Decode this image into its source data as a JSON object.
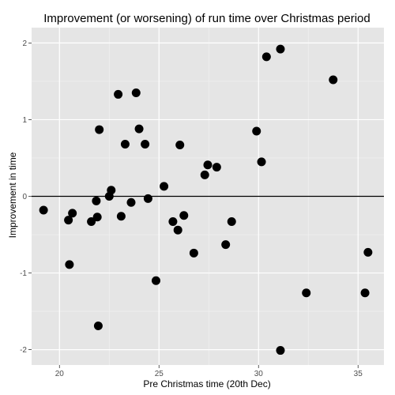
{
  "chart_data": {
    "type": "scatter",
    "title": "Improvement (or worsening) of run time over Christmas period",
    "xlabel": "Pre Christmas time (20th Dec)",
    "ylabel": "Improvement in time",
    "xlim": [
      18.6,
      36.3
    ],
    "ylim": [
      -2.2,
      2.2
    ],
    "x_ticks": [
      20,
      25,
      30,
      35
    ],
    "y_ticks": [
      -2,
      -1,
      0,
      1,
      2
    ],
    "grid": true,
    "reference_line_y": 0,
    "points": [
      {
        "x": 19.2,
        "y": -0.18
      },
      {
        "x": 20.45,
        "y": -0.31
      },
      {
        "x": 20.5,
        "y": -0.89
      },
      {
        "x": 20.65,
        "y": -0.22
      },
      {
        "x": 21.6,
        "y": -0.33
      },
      {
        "x": 21.85,
        "y": -0.06
      },
      {
        "x": 21.9,
        "y": -0.27
      },
      {
        "x": 22.0,
        "y": 0.87
      },
      {
        "x": 21.95,
        "y": -1.69
      },
      {
        "x": 22.5,
        "y": 0.0
      },
      {
        "x": 22.6,
        "y": 0.08
      },
      {
        "x": 22.95,
        "y": 1.33
      },
      {
        "x": 23.1,
        "y": -0.26
      },
      {
        "x": 23.3,
        "y": 0.68
      },
      {
        "x": 23.6,
        "y": -0.08
      },
      {
        "x": 23.85,
        "y": 1.35
      },
      {
        "x": 24.0,
        "y": 0.88
      },
      {
        "x": 24.3,
        "y": 0.68
      },
      {
        "x": 24.45,
        "y": -0.03
      },
      {
        "x": 24.85,
        "y": -1.1
      },
      {
        "x": 25.25,
        "y": 0.13
      },
      {
        "x": 25.7,
        "y": -0.33
      },
      {
        "x": 25.95,
        "y": -0.44
      },
      {
        "x": 26.05,
        "y": 0.67
      },
      {
        "x": 26.25,
        "y": -0.25
      },
      {
        "x": 26.75,
        "y": -0.74
      },
      {
        "x": 27.3,
        "y": 0.28
      },
      {
        "x": 27.45,
        "y": 0.41
      },
      {
        "x": 27.9,
        "y": 0.38
      },
      {
        "x": 28.35,
        "y": -0.63
      },
      {
        "x": 28.65,
        "y": -0.33
      },
      {
        "x": 29.9,
        "y": 0.85
      },
      {
        "x": 30.15,
        "y": 0.45
      },
      {
        "x": 30.4,
        "y": 1.82
      },
      {
        "x": 31.1,
        "y": 1.92
      },
      {
        "x": 31.1,
        "y": -2.01
      },
      {
        "x": 32.4,
        "y": -1.26
      },
      {
        "x": 33.75,
        "y": 1.52
      },
      {
        "x": 35.35,
        "y": -1.26
      },
      {
        "x": 35.5,
        "y": -0.73
      }
    ]
  },
  "colors": {
    "panel_background": "#e5e5e5",
    "grid_major": "#ffffff",
    "grid_minor": "#f2f2f2",
    "points": "#000000",
    "reference_line": "#000000",
    "tick_label": "#4d4d4d"
  }
}
